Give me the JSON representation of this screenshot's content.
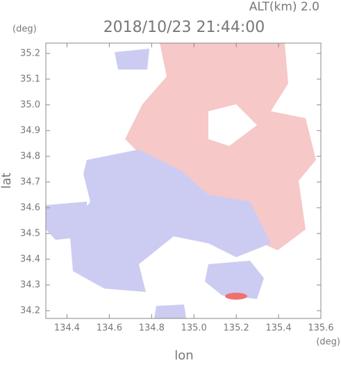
{
  "chart_data": {
    "type": "radar-map",
    "title": "2018/10/23 21:44:00",
    "subtitle": "ALT(km) 2.0",
    "x_label": "lon",
    "x_unit": "(deg)",
    "y_label": "lat",
    "y_unit": "(deg)",
    "xlim": [
      134.3,
      135.6
    ],
    "xticks": [
      134.4,
      134.6,
      134.8,
      {
        "value": 135.0,
        "label": "135.0"
      },
      135.2,
      135.4,
      135.6
    ],
    "ylim": [
      34.17,
      35.24
    ],
    "yticks": [
      34.2,
      34.3,
      34.4,
      34.5,
      34.6,
      34.7,
      34.8,
      34.9,
      {
        "value": 35.0,
        "label": "35.0"
      },
      35.1,
      35.2
    ]
  }
}
